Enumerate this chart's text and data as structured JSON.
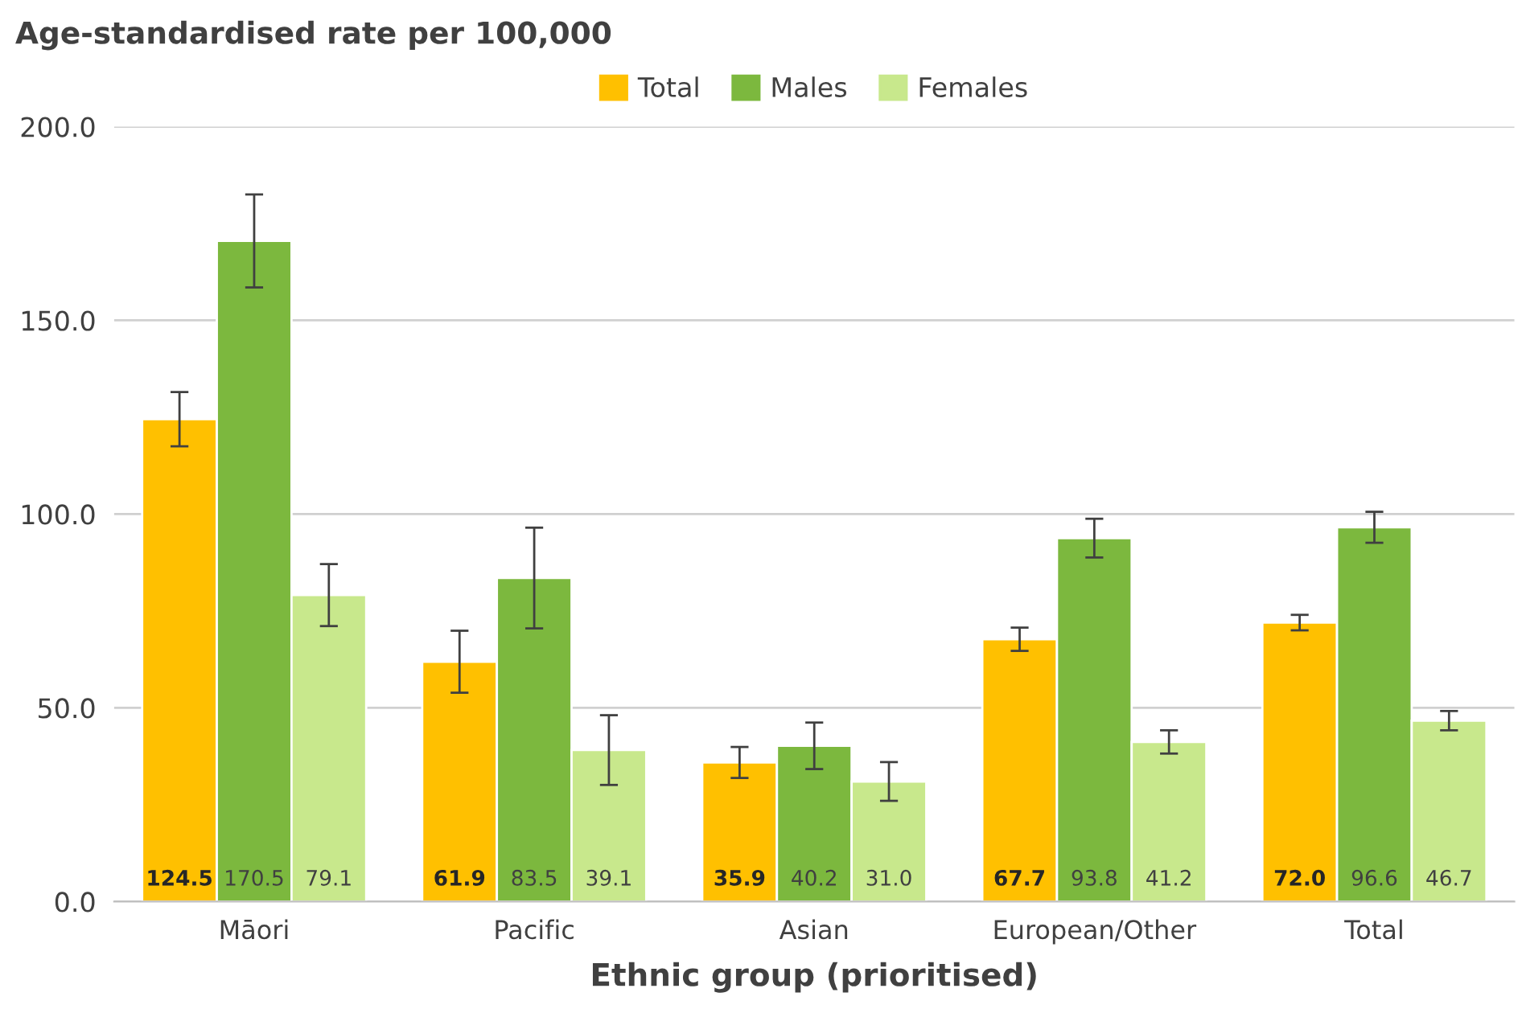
{
  "chart_data": {
    "type": "bar",
    "ylabel": "Age-standardised rate per 100,000",
    "xlabel": "Ethnic group (prioritised)",
    "categories": [
      "Māori",
      "Pacific",
      "Asian",
      "European/Other",
      "Total"
    ],
    "series": [
      {
        "name": "Total",
        "color": "#ffc000",
        "values": [
          124.5,
          61.9,
          35.9,
          67.7,
          72.0
        ],
        "value_labels": [
          "124.5",
          "61.9",
          "35.9",
          "67.7",
          "72.0"
        ],
        "errors": [
          7,
          8,
          4,
          3,
          2
        ]
      },
      {
        "name": "Males",
        "color": "#7cb83e",
        "values": [
          170.5,
          83.5,
          40.2,
          93.8,
          96.6
        ],
        "value_labels": [
          "170.5",
          "83.5",
          "40.2",
          "93.8",
          "96.6"
        ],
        "errors": [
          12,
          13,
          6,
          5,
          4
        ]
      },
      {
        "name": "Females",
        "color": "#c8e88c",
        "values": [
          79.1,
          39.1,
          31.0,
          41.2,
          46.7
        ],
        "value_labels": [
          "79.1",
          "39.1",
          "31.0",
          "41.2",
          "46.7"
        ],
        "errors": [
          8,
          9,
          5,
          3,
          2.5
        ]
      }
    ],
    "ylim": [
      0,
      200
    ],
    "yticks": [
      {
        "value": 0,
        "label": "0.0"
      },
      {
        "value": 50,
        "label": "50.0"
      },
      {
        "value": 100,
        "label": "100.0"
      },
      {
        "value": 150,
        "label": "150.0"
      },
      {
        "value": 200,
        "label": "200.0"
      }
    ],
    "grid": "y",
    "legend": "top"
  }
}
